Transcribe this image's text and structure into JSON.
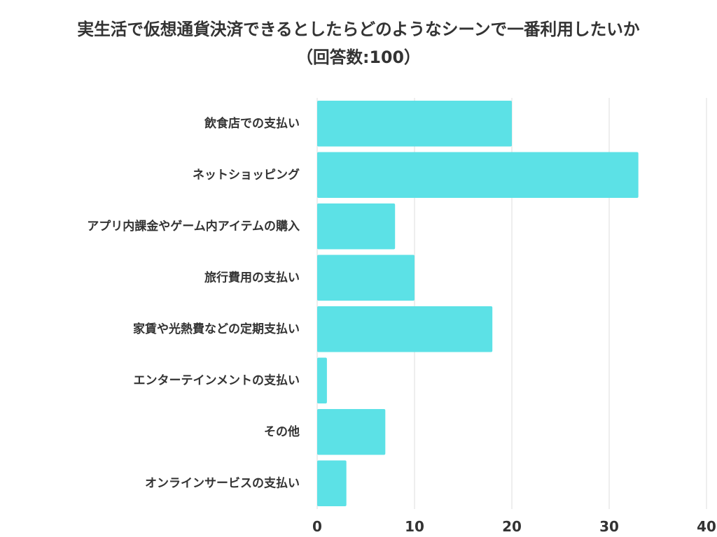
{
  "chart_data": {
    "type": "bar",
    "orientation": "horizontal",
    "title": "実生活で仮想通貨決済できるとしたらどのようなシーンで一番利用したいか",
    "subtitle": "（回答数:100）",
    "categories": [
      "飲食店での支払い",
      "ネットショッピング",
      "アプリ内課金やゲーム内アイテムの購入",
      "旅行費用の支払い",
      "家賃や光熱費などの定期支払い",
      "エンターテインメントの支払い",
      "その他",
      "オンラインサービスの支払い"
    ],
    "values": [
      20,
      33,
      8,
      10,
      18,
      1,
      7,
      3
    ],
    "xlim": [
      0,
      40
    ],
    "xticks": [
      0,
      10,
      20,
      30,
      40
    ],
    "xlabel": "",
    "ylabel": "",
    "grid": true,
    "legend": "none",
    "colors": {
      "bar": "#5ce1e6",
      "grid": "#dddddd",
      "text": "#333333"
    }
  }
}
